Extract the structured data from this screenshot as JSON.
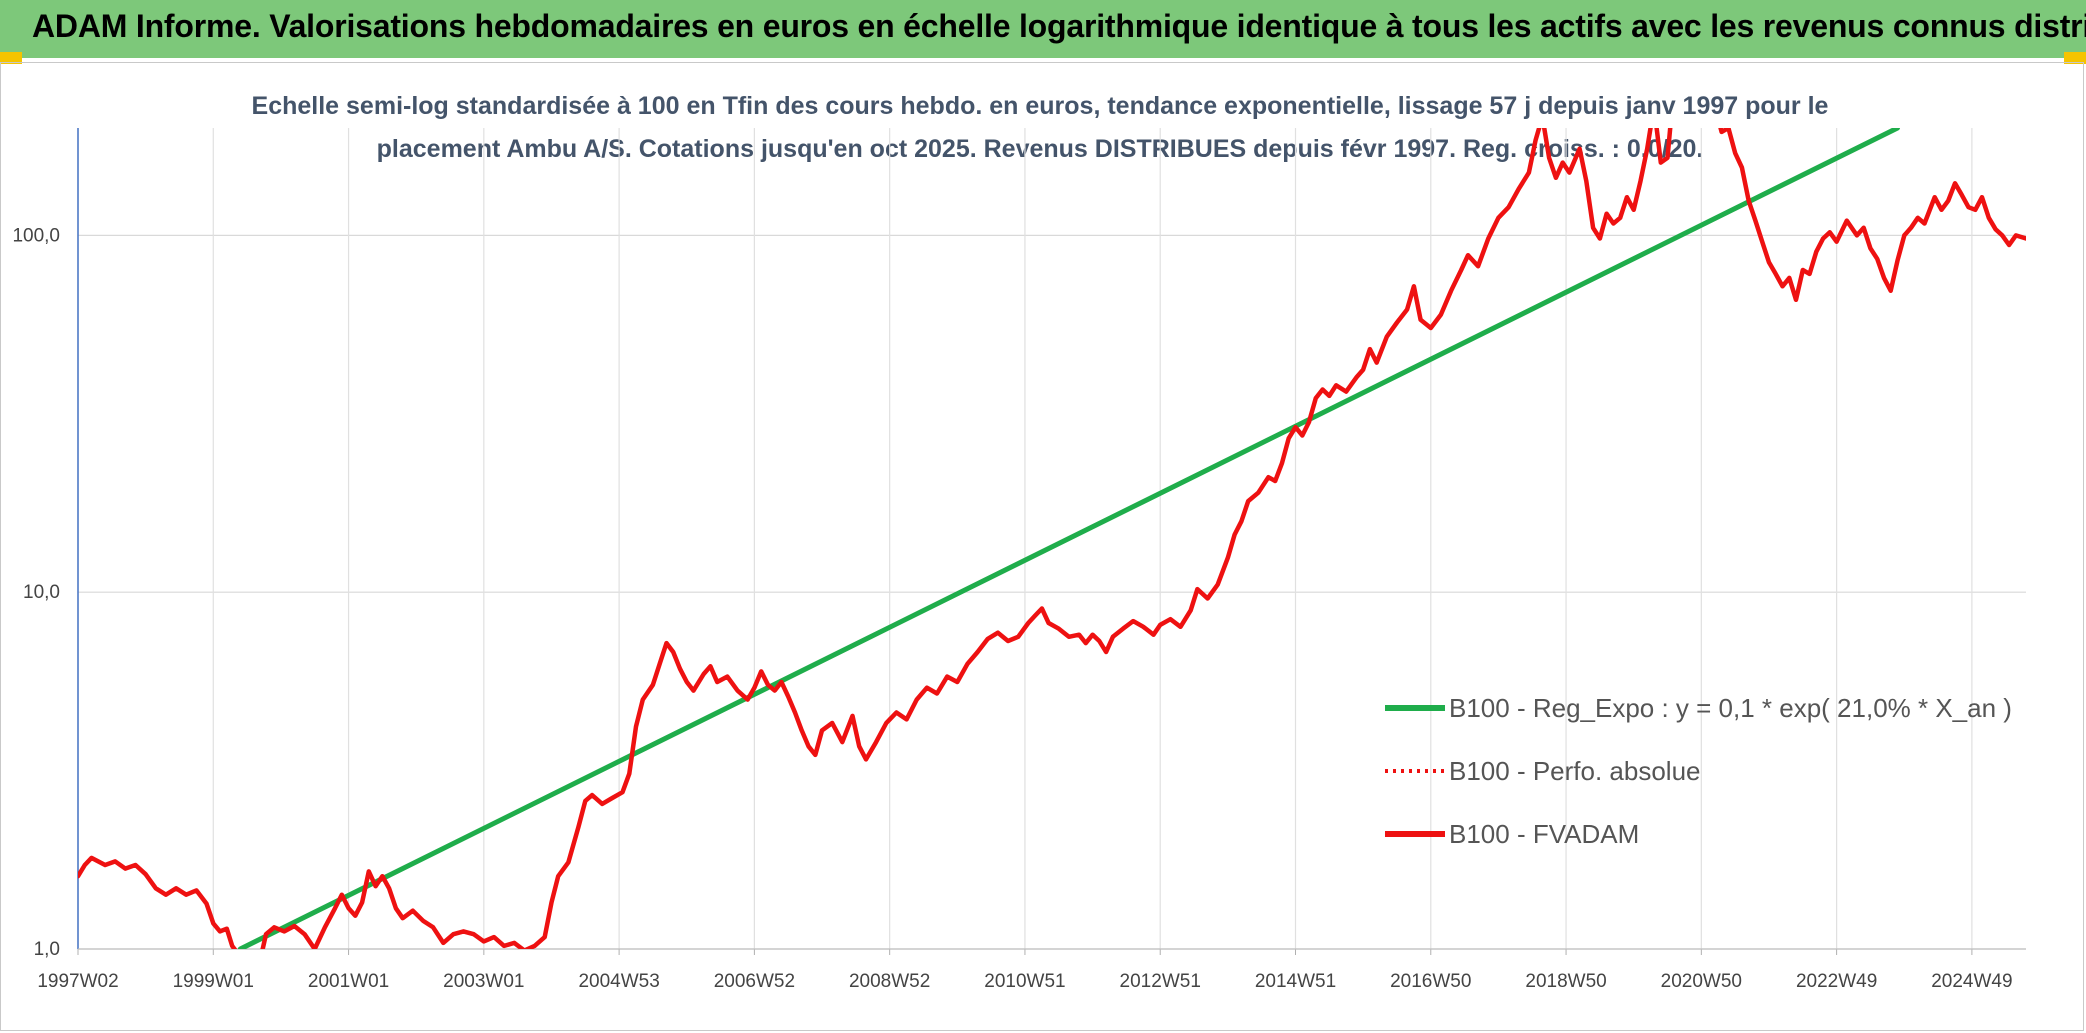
{
  "header": {
    "title": "ADAM Informe. Valorisations hebdomadaires en euros en échelle logarithmique identique à tous les actifs avec les revenus connus distribués"
  },
  "chart_data": {
    "type": "line",
    "title_line1": "Echelle semi-log standardisée à 100 en Tfin des cours hebdo. en euros, tendance exponentielle, lissage 57 j depuis janv 1997 pour le",
    "title_line2": "placement Ambu A/S. Cotations jusqu'en oct 2025. Revenus DISTRIBUES depuis févr 1997. Reg. croiss. : 0,0/20.",
    "y_scale": "log",
    "ylim": [
      1,
      200
    ],
    "y_ticks": [
      {
        "value": 1,
        "label": "1,0"
      },
      {
        "value": 10,
        "label": "10,0"
      },
      {
        "value": 100,
        "label": "100,0"
      }
    ],
    "x_range": [
      1997.0,
      2025.8
    ],
    "x_ticks": [
      {
        "x": 1997.0,
        "label": "1997W02"
      },
      {
        "x": 1999.0,
        "label": "1999W01"
      },
      {
        "x": 2001.0,
        "label": "2001W01"
      },
      {
        "x": 2003.0,
        "label": "2003W01"
      },
      {
        "x": 2005.0,
        "label": "2004W53"
      },
      {
        "x": 2007.0,
        "label": "2006W52"
      },
      {
        "x": 2009.0,
        "label": "2008W52"
      },
      {
        "x": 2011.0,
        "label": "2010W51"
      },
      {
        "x": 2013.0,
        "label": "2012W51"
      },
      {
        "x": 2015.0,
        "label": "2014W51"
      },
      {
        "x": 2017.0,
        "label": "2016W50"
      },
      {
        "x": 2019.0,
        "label": "2018W50"
      },
      {
        "x": 2021.0,
        "label": "2020W50"
      },
      {
        "x": 2023.0,
        "label": "2022W49"
      },
      {
        "x": 2025.0,
        "label": "2024W49"
      }
    ],
    "grid": true,
    "legend_position": "right",
    "series": [
      {
        "name": "B100 - Reg_Expo : y = 0,1 * exp( 21,0% *  X_an )",
        "color": "#1fad4b",
        "style": "solid",
        "points": [
          [
            1999.4,
            1.0
          ],
          [
            2023.9,
            200.0
          ]
        ]
      },
      {
        "name": "B100 - Perfo. absolue",
        "color": "#ee1111",
        "style": "dotted",
        "points": []
      },
      {
        "name": "B100 - FVADAM",
        "color": "#ee1111",
        "style": "solid",
        "points": [
          [
            1997.0,
            1.6
          ],
          [
            1997.1,
            1.72
          ],
          [
            1997.2,
            1.8
          ],
          [
            1997.4,
            1.72
          ],
          [
            1997.55,
            1.76
          ],
          [
            1997.7,
            1.68
          ],
          [
            1997.85,
            1.72
          ],
          [
            1998.0,
            1.62
          ],
          [
            1998.15,
            1.48
          ],
          [
            1998.3,
            1.42
          ],
          [
            1998.45,
            1.48
          ],
          [
            1998.6,
            1.42
          ],
          [
            1998.75,
            1.46
          ],
          [
            1998.9,
            1.34
          ],
          [
            1999.0,
            1.18
          ],
          [
            1999.1,
            1.12
          ],
          [
            1999.2,
            1.14
          ],
          [
            1999.28,
            1.02
          ],
          [
            1999.4,
            0.95
          ],
          [
            1999.5,
            0.96
          ],
          [
            1999.6,
            0.96
          ],
          [
            1999.72,
            0.98
          ],
          [
            1999.78,
            1.1
          ],
          [
            1999.9,
            1.15
          ],
          [
            2000.05,
            1.12
          ],
          [
            2000.2,
            1.16
          ],
          [
            2000.35,
            1.1
          ],
          [
            2000.5,
            1.0
          ],
          [
            2000.65,
            1.15
          ],
          [
            2000.8,
            1.3
          ],
          [
            2000.9,
            1.42
          ],
          [
            2001.0,
            1.3
          ],
          [
            2001.1,
            1.24
          ],
          [
            2001.2,
            1.35
          ],
          [
            2001.3,
            1.65
          ],
          [
            2001.4,
            1.5
          ],
          [
            2001.5,
            1.6
          ],
          [
            2001.6,
            1.48
          ],
          [
            2001.7,
            1.3
          ],
          [
            2001.8,
            1.22
          ],
          [
            2001.95,
            1.28
          ],
          [
            2002.1,
            1.2
          ],
          [
            2002.25,
            1.15
          ],
          [
            2002.4,
            1.04
          ],
          [
            2002.55,
            1.1
          ],
          [
            2002.7,
            1.12
          ],
          [
            2002.85,
            1.1
          ],
          [
            2003.0,
            1.05
          ],
          [
            2003.15,
            1.08
          ],
          [
            2003.3,
            1.02
          ],
          [
            2003.45,
            1.04
          ],
          [
            2003.6,
            0.99
          ],
          [
            2003.75,
            1.02
          ],
          [
            2003.9,
            1.08
          ],
          [
            2004.0,
            1.35
          ],
          [
            2004.1,
            1.6
          ],
          [
            2004.25,
            1.75
          ],
          [
            2004.4,
            2.2
          ],
          [
            2004.5,
            2.6
          ],
          [
            2004.6,
            2.7
          ],
          [
            2004.75,
            2.55
          ],
          [
            2004.9,
            2.65
          ],
          [
            2005.05,
            2.75
          ],
          [
            2005.15,
            3.1
          ],
          [
            2005.25,
            4.2
          ],
          [
            2005.35,
            5.0
          ],
          [
            2005.5,
            5.5
          ],
          [
            2005.6,
            6.3
          ],
          [
            2005.7,
            7.2
          ],
          [
            2005.8,
            6.8
          ],
          [
            2005.9,
            6.1
          ],
          [
            2006.0,
            5.6
          ],
          [
            2006.1,
            5.3
          ],
          [
            2006.25,
            5.9
          ],
          [
            2006.35,
            6.2
          ],
          [
            2006.45,
            5.6
          ],
          [
            2006.6,
            5.8
          ],
          [
            2006.75,
            5.3
          ],
          [
            2006.9,
            5.0
          ],
          [
            2007.0,
            5.4
          ],
          [
            2007.1,
            6.0
          ],
          [
            2007.2,
            5.5
          ],
          [
            2007.3,
            5.3
          ],
          [
            2007.4,
            5.6
          ],
          [
            2007.5,
            5.1
          ],
          [
            2007.6,
            4.6
          ],
          [
            2007.7,
            4.1
          ],
          [
            2007.8,
            3.7
          ],
          [
            2007.9,
            3.5
          ],
          [
            2008.0,
            4.1
          ],
          [
            2008.15,
            4.3
          ],
          [
            2008.3,
            3.8
          ],
          [
            2008.45,
            4.5
          ],
          [
            2008.55,
            3.7
          ],
          [
            2008.65,
            3.4
          ],
          [
            2008.8,
            3.8
          ],
          [
            2008.95,
            4.3
          ],
          [
            2009.1,
            4.6
          ],
          [
            2009.25,
            4.4
          ],
          [
            2009.4,
            5.0
          ],
          [
            2009.55,
            5.4
          ],
          [
            2009.7,
            5.2
          ],
          [
            2009.85,
            5.8
          ],
          [
            2010.0,
            5.6
          ],
          [
            2010.15,
            6.3
          ],
          [
            2010.3,
            6.8
          ],
          [
            2010.45,
            7.4
          ],
          [
            2010.6,
            7.7
          ],
          [
            2010.75,
            7.3
          ],
          [
            2010.9,
            7.5
          ],
          [
            2011.05,
            8.2
          ],
          [
            2011.15,
            8.6
          ],
          [
            2011.25,
            9.0
          ],
          [
            2011.35,
            8.2
          ],
          [
            2011.5,
            7.9
          ],
          [
            2011.65,
            7.5
          ],
          [
            2011.8,
            7.6
          ],
          [
            2011.9,
            7.2
          ],
          [
            2012.0,
            7.6
          ],
          [
            2012.1,
            7.3
          ],
          [
            2012.2,
            6.8
          ],
          [
            2012.3,
            7.5
          ],
          [
            2012.45,
            7.9
          ],
          [
            2012.6,
            8.3
          ],
          [
            2012.75,
            8.0
          ],
          [
            2012.9,
            7.6
          ],
          [
            2013.0,
            8.1
          ],
          [
            2013.15,
            8.4
          ],
          [
            2013.3,
            8.0
          ],
          [
            2013.45,
            8.9
          ],
          [
            2013.55,
            10.2
          ],
          [
            2013.7,
            9.6
          ],
          [
            2013.85,
            10.5
          ],
          [
            2014.0,
            12.5
          ],
          [
            2014.1,
            14.5
          ],
          [
            2014.2,
            15.8
          ],
          [
            2014.3,
            18.0
          ],
          [
            2014.45,
            19.0
          ],
          [
            2014.6,
            21.0
          ],
          [
            2014.7,
            20.5
          ],
          [
            2014.8,
            23.0
          ],
          [
            2014.9,
            27.0
          ],
          [
            2015.0,
            29.0
          ],
          [
            2015.1,
            27.5
          ],
          [
            2015.2,
            30.0
          ],
          [
            2015.3,
            35.0
          ],
          [
            2015.4,
            37.0
          ],
          [
            2015.5,
            35.5
          ],
          [
            2015.6,
            38.0
          ],
          [
            2015.75,
            36.5
          ],
          [
            2015.9,
            40.0
          ],
          [
            2016.0,
            42.0
          ],
          [
            2016.1,
            48.0
          ],
          [
            2016.2,
            44.0
          ],
          [
            2016.35,
            52.0
          ],
          [
            2016.5,
            57.0
          ],
          [
            2016.65,
            62.0
          ],
          [
            2016.75,
            72.0
          ],
          [
            2016.85,
            58.0
          ],
          [
            2017.0,
            55.0
          ],
          [
            2017.15,
            60.0
          ],
          [
            2017.3,
            70.0
          ],
          [
            2017.45,
            80.0
          ],
          [
            2017.55,
            88.0
          ],
          [
            2017.7,
            82.0
          ],
          [
            2017.85,
            98.0
          ],
          [
            2018.0,
            112.0
          ],
          [
            2018.15,
            120.0
          ],
          [
            2018.3,
            135.0
          ],
          [
            2018.45,
            150.0
          ],
          [
            2018.55,
            185.0
          ],
          [
            2018.65,
            215.0
          ],
          [
            2018.75,
            165.0
          ],
          [
            2018.85,
            145.0
          ],
          [
            2018.95,
            160.0
          ],
          [
            2019.05,
            150.0
          ],
          [
            2019.2,
            175.0
          ],
          [
            2019.3,
            142.0
          ],
          [
            2019.4,
            105.0
          ],
          [
            2019.5,
            98.0
          ],
          [
            2019.6,
            115.0
          ],
          [
            2019.7,
            108.0
          ],
          [
            2019.8,
            112.0
          ],
          [
            2019.9,
            128.0
          ],
          [
            2020.0,
            118.0
          ],
          [
            2020.1,
            142.0
          ],
          [
            2020.2,
            175.0
          ],
          [
            2020.3,
            230.0
          ],
          [
            2020.4,
            160.0
          ],
          [
            2020.5,
            165.0
          ],
          [
            2020.55,
            210.0
          ],
          [
            2020.65,
            240.0
          ],
          [
            2020.8,
            250.0
          ],
          [
            2021.0,
            240.0
          ],
          [
            2021.2,
            230.0
          ],
          [
            2021.3,
            195.0
          ],
          [
            2021.4,
            200.0
          ],
          [
            2021.5,
            170.0
          ],
          [
            2021.6,
            155.0
          ],
          [
            2021.7,
            125.0
          ],
          [
            2021.8,
            110.0
          ],
          [
            2021.9,
            96.0
          ],
          [
            2022.0,
            84.0
          ],
          [
            2022.1,
            78.0
          ],
          [
            2022.2,
            72.0
          ],
          [
            2022.3,
            76.0
          ],
          [
            2022.4,
            66.0
          ],
          [
            2022.5,
            80.0
          ],
          [
            2022.6,
            78.0
          ],
          [
            2022.7,
            90.0
          ],
          [
            2022.8,
            98.0
          ],
          [
            2022.9,
            102.0
          ],
          [
            2023.0,
            96.0
          ],
          [
            2023.15,
            110.0
          ],
          [
            2023.3,
            100.0
          ],
          [
            2023.4,
            105.0
          ],
          [
            2023.5,
            92.0
          ],
          [
            2023.6,
            86.0
          ],
          [
            2023.7,
            76.0
          ],
          [
            2023.8,
            70.0
          ],
          [
            2023.9,
            85.0
          ],
          [
            2024.0,
            100.0
          ],
          [
            2024.1,
            105.0
          ],
          [
            2024.2,
            112.0
          ],
          [
            2024.3,
            108.0
          ],
          [
            2024.45,
            128.0
          ],
          [
            2024.55,
            118.0
          ],
          [
            2024.65,
            125.0
          ],
          [
            2024.75,
            140.0
          ],
          [
            2024.85,
            130.0
          ],
          [
            2024.95,
            120.0
          ],
          [
            2025.05,
            118.0
          ],
          [
            2025.15,
            128.0
          ],
          [
            2025.25,
            112.0
          ],
          [
            2025.35,
            104.0
          ],
          [
            2025.45,
            100.0
          ],
          [
            2025.55,
            94.0
          ],
          [
            2025.65,
            100.0
          ],
          [
            2025.8,
            98.0
          ]
        ]
      }
    ]
  }
}
